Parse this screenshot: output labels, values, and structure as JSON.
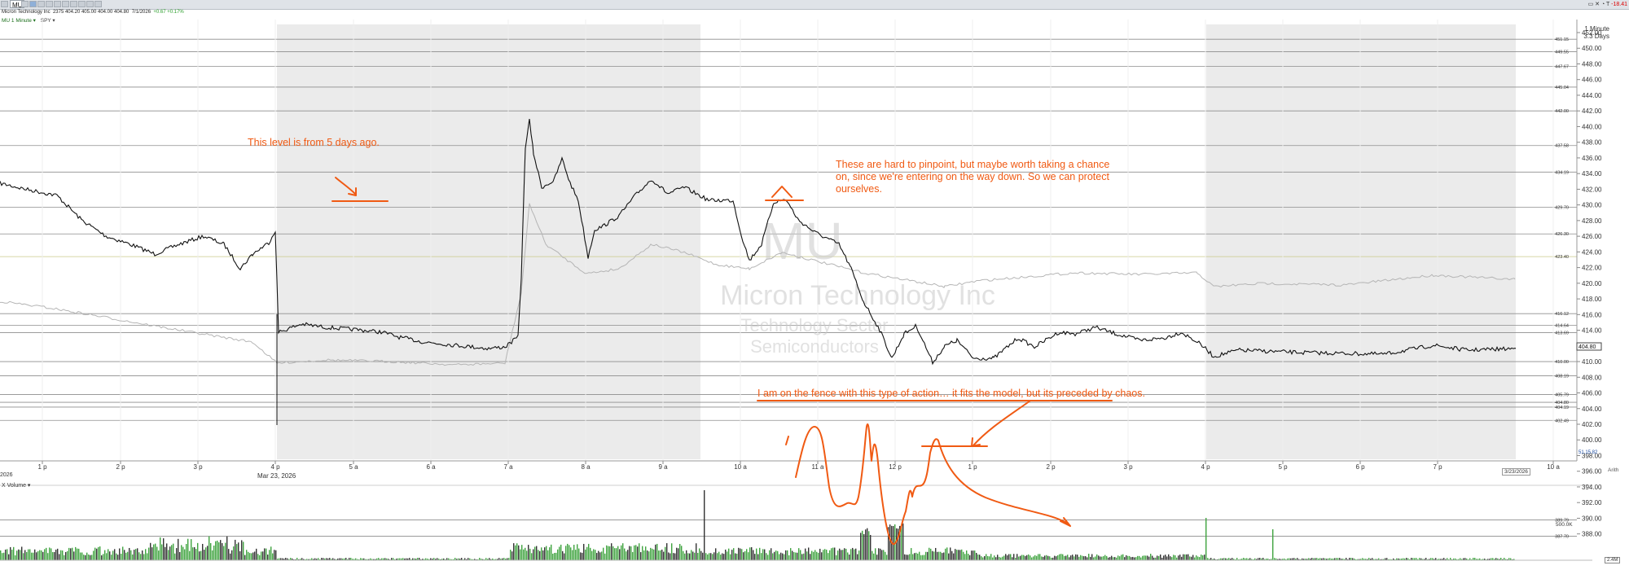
{
  "toolbar": {
    "symbol": "MU",
    "top_right": {
      "counter": "T",
      "change": "-18.41"
    }
  },
  "quote": {
    "company": "Micron Technology Inc",
    "fields": "2375  404.20  405.00  404.00  404.80",
    "date": "7/1/2026",
    "change": "+0.67  +0.17%"
  },
  "interval": {
    "label": "MU 1 Minute ▾",
    "compare": "SPY ▾"
  },
  "interval_label_right": {
    "line1": "1 Minute",
    "line2": "3.3 Days"
  },
  "watermark": {
    "symbol": "MU",
    "company": "Micron Technology Inc",
    "sector": "Technology Sector",
    "industry": "Semiconductors"
  },
  "annotations": {
    "note1": "This level is from 5 days ago.",
    "note2": "These are hard to pinpoint, but maybe worth taking a chance on, since we're entering on the way down. So we can protect ourselves.",
    "note3": "I am on the fence with this type of action… it fits the model, but its preceded by chaos."
  },
  "time_axis": {
    "date_left": "2026",
    "date_mid": "Mar 23, 2026",
    "date_right": "3/23/2026",
    "ticks": [
      "1 p",
      "2 p",
      "3 p",
      "4 p",
      "5 a",
      "6 a",
      "7 a",
      "8 a",
      "9 a",
      "10 a",
      "11 a",
      "12 p",
      "1 p",
      "2 p",
      "3 p",
      "4 p",
      "5 p",
      "6 p",
      "7 p",
      "10 a"
    ],
    "arith": "Arith"
  },
  "price_axis": {
    "ticks": [
      "452.00",
      "450.00",
      "448.00",
      "446.00",
      "444.00",
      "442.00",
      "440.00",
      "438.00",
      "436.00",
      "434.00",
      "432.00",
      "430.00",
      "428.00",
      "426.00",
      "424.00",
      "422.00",
      "420.00",
      "418.00",
      "416.00",
      "414.00",
      "412.00",
      "410.00",
      "408.00",
      "406.00",
      "404.00",
      "402.00",
      "400.00",
      "398.00",
      "396.00",
      "394.00",
      "392.00",
      "390.00",
      "388.00"
    ],
    "level_labels": [
      "451.15",
      "449.55",
      "447.67",
      "445.04",
      "442.00",
      "437.58",
      "434.19",
      "429.70",
      "426.30",
      "423.40",
      "416.12",
      "414.64",
      "413.69",
      "410.00",
      "408.19",
      "405.79",
      "404.80",
      "404.19",
      "402.49",
      "389.79",
      "387.70"
    ],
    "current_price": "404.80",
    "spy_label": "SPY",
    "spy_price": "51.15.82"
  },
  "volume": {
    "header": "X  Volume ▾",
    "axis_label": "500.0K",
    "last_box": "2.4M"
  },
  "colors": {
    "annotation": "#f05a13",
    "up_volume": "#3fa33f",
    "down_volume": "#333333",
    "price_line": "#111111",
    "spy_line": "#b5b5b5",
    "session_shade": "#ebebeb"
  }
}
